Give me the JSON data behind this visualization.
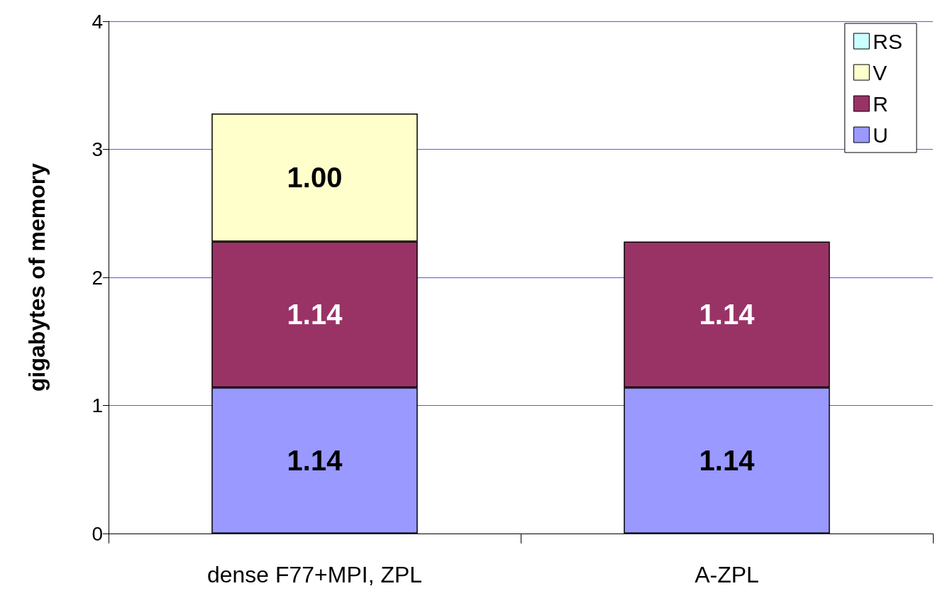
{
  "chart_data": {
    "type": "bar",
    "stacked": true,
    "ylabel": "gigabytes of memory",
    "categories": [
      "dense F77+MPI, ZPL",
      "A-ZPL"
    ],
    "series": [
      {
        "name": "U",
        "color": "#9999ff",
        "values": [
          1.14,
          1.14
        ],
        "value_labels": [
          "1.14",
          "1.14"
        ]
      },
      {
        "name": "R",
        "color": "#993366",
        "values": [
          1.14,
          1.14
        ],
        "value_labels": [
          "1.14",
          "1.14"
        ]
      },
      {
        "name": "V",
        "color": "#ffffcc",
        "values": [
          1.0,
          null
        ],
        "value_labels": [
          "1.00",
          null
        ]
      },
      {
        "name": "RS",
        "color": "#ccffff",
        "values": [
          null,
          null
        ]
      }
    ],
    "ylim": [
      0,
      4
    ],
    "yticks": [
      0,
      1,
      2,
      3,
      4
    ],
    "grid": "y",
    "legend": "top right"
  }
}
